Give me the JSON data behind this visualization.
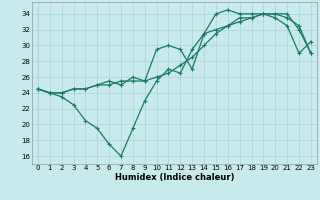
{
  "xlabel": "Humidex (Indice chaleur)",
  "background_color": "#c8eaea",
  "grid_color": "#b0d8d8",
  "line_color": "#1a7a6a",
  "xlim": [
    -0.5,
    23.5
  ],
  "ylim": [
    15.0,
    35.5
  ],
  "yticks": [
    16,
    18,
    20,
    22,
    24,
    26,
    28,
    30,
    32,
    34
  ],
  "xticks": [
    0,
    1,
    2,
    3,
    4,
    5,
    6,
    7,
    8,
    9,
    10,
    11,
    12,
    13,
    14,
    15,
    16,
    17,
    18,
    19,
    20,
    21,
    22,
    23
  ],
  "line1_x": [
    0,
    1,
    2,
    3,
    4,
    5,
    6,
    7,
    8,
    9,
    10,
    11,
    12,
    13,
    14,
    15,
    16,
    17,
    18,
    19,
    20,
    21,
    22,
    23
  ],
  "line1_y": [
    24.5,
    24.0,
    24.0,
    24.5,
    24.5,
    25.0,
    25.0,
    25.5,
    25.5,
    25.5,
    26.0,
    26.5,
    27.5,
    28.5,
    30.0,
    31.5,
    32.5,
    33.5,
    33.5,
    34.0,
    34.0,
    33.5,
    32.5,
    29.0
  ],
  "line2_x": [
    0,
    1,
    2,
    3,
    4,
    5,
    6,
    7,
    8,
    9,
    10,
    11,
    12,
    13,
    14,
    15,
    16,
    17,
    18,
    19,
    20,
    21,
    22,
    23
  ],
  "line2_y": [
    24.5,
    24.0,
    23.5,
    22.5,
    20.5,
    19.5,
    17.5,
    16.0,
    19.5,
    23.0,
    25.5,
    27.0,
    26.5,
    29.5,
    31.5,
    34.0,
    34.5,
    34.0,
    34.0,
    34.0,
    33.5,
    32.5,
    29.0,
    30.5
  ],
  "line3_x": [
    0,
    1,
    2,
    3,
    4,
    5,
    6,
    7,
    8,
    9,
    10,
    11,
    12,
    13,
    14,
    15,
    16,
    17,
    18,
    19,
    20,
    21,
    22,
    23
  ],
  "line3_y": [
    24.5,
    24.0,
    24.0,
    24.5,
    24.5,
    25.0,
    25.5,
    25.0,
    26.0,
    25.5,
    29.5,
    30.0,
    29.5,
    27.0,
    31.5,
    32.0,
    32.5,
    33.0,
    33.5,
    34.0,
    34.0,
    34.0,
    32.0,
    29.0
  ]
}
